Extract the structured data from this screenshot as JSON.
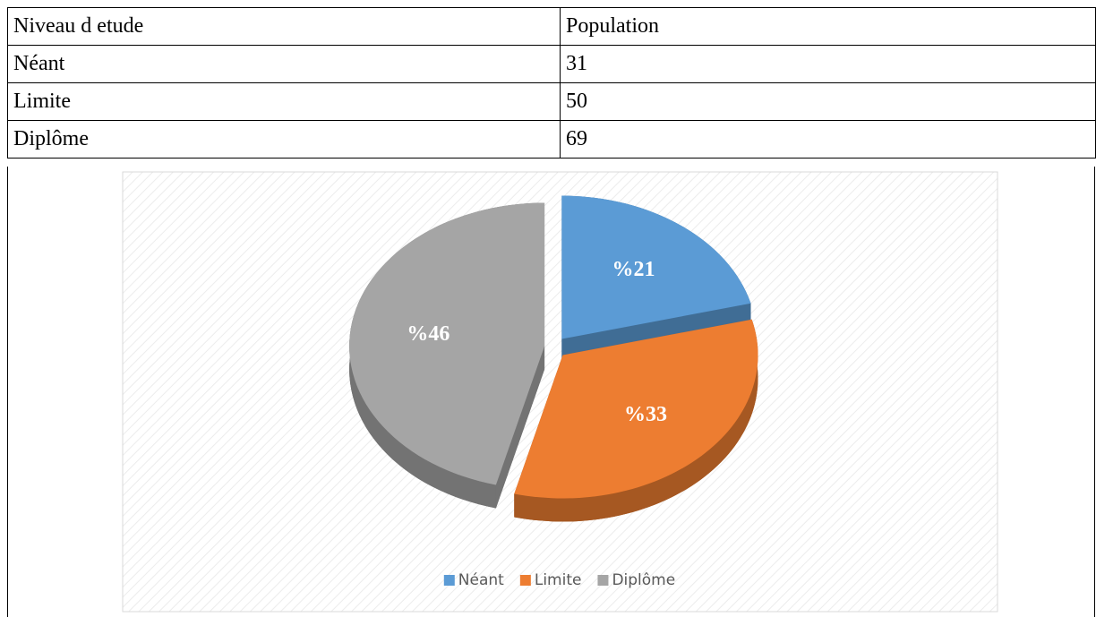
{
  "table": {
    "header": [
      "Niveau d etude",
      "Population"
    ],
    "rows": [
      [
        "Néant",
        31
      ],
      [
        "Limite",
        50
      ],
      [
        "Diplôme",
        69
      ]
    ]
  },
  "chart_data": {
    "type": "pie",
    "categories": [
      "Néant",
      "Limite",
      "Diplôme"
    ],
    "values": [
      21,
      33,
      46
    ],
    "value_labels": [
      "%21",
      "%33",
      "%46"
    ],
    "colors": [
      "#5b9bd5",
      "#ed7d31",
      "#a5a5a5"
    ],
    "legend": "bottom"
  }
}
